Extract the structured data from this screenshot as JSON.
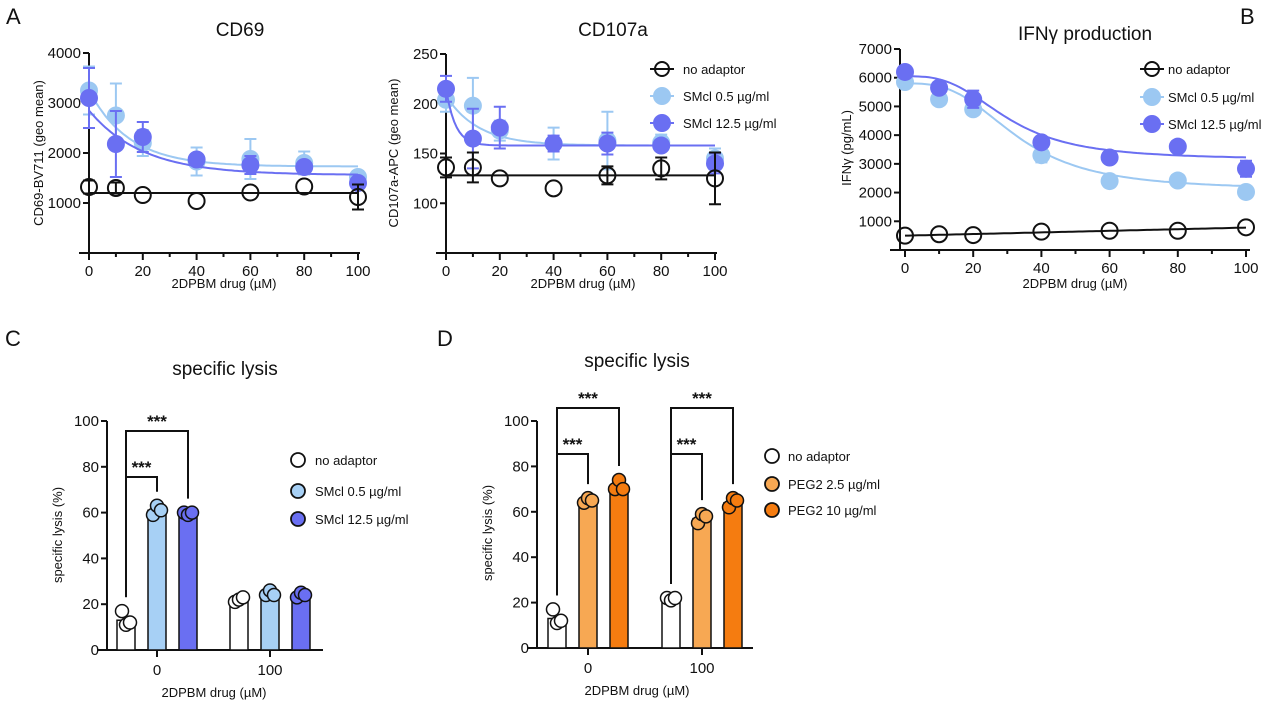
{
  "panel_letters": [
    "A",
    "B",
    "C",
    "D"
  ],
  "chart_data": [
    {
      "type": "scatter",
      "panel": "A",
      "title": "CD69",
      "xlabel": "2DPBM drug (µM)",
      "ylabel": "CD69-BV711 (geo mean)",
      "xlim": [
        0,
        100
      ],
      "ylim": [
        0,
        4000
      ],
      "xticks": [
        0,
        20,
        40,
        60,
        80,
        100
      ],
      "yticks": [
        1000,
        2000,
        3000,
        4000
      ],
      "x": [
        0,
        10,
        20,
        40,
        60,
        80,
        100
      ],
      "series": [
        {
          "name": "no adaptor",
          "color": "#111111",
          "open": true,
          "values": [
            1320,
            1300,
            1160,
            1040,
            1210,
            1330,
            1120
          ],
          "error": [
            130,
            110,
            0,
            0,
            0,
            0,
            250
          ],
          "fit": {
            "model": "constant",
            "value": 1200
          }
        },
        {
          "name": "SMcl 0.5 µg/ml",
          "color": "#9cc8f2",
          "values": [
            3250,
            2750,
            2200,
            1830,
            1880,
            1800,
            1520
          ],
          "error": [
            480,
            640,
            260,
            280,
            400,
            230,
            120
          ],
          "fit": {
            "model": "exponential",
            "top": 3250,
            "bottom": 1730,
            "k": 15
          }
        },
        {
          "name": "SMcl 12.5 µg/ml",
          "color": "#6a6ff2",
          "values": [
            3100,
            2180,
            2320,
            1870,
            1760,
            1720,
            1400
          ],
          "error": [
            600,
            660,
            300,
            0,
            180,
            0,
            80
          ],
          "fit": {
            "model": "exponential",
            "top": 2850,
            "bottom": 1560,
            "k": 20
          }
        }
      ],
      "legend": "none"
    },
    {
      "type": "scatter",
      "panel": "A",
      "title": "CD107a",
      "xlabel": "2DPBM drug (µM)",
      "ylabel": "CD107a-APC (geo mean)",
      "xlim": [
        0,
        100
      ],
      "ylim": [
        50,
        250
      ],
      "xticks": [
        0,
        20,
        40,
        60,
        80,
        100
      ],
      "yticks": [
        100,
        150,
        200,
        250
      ],
      "x": [
        0,
        10,
        20,
        40,
        60,
        80,
        100
      ],
      "series": [
        {
          "name": "no adaptor",
          "color": "#111111",
          "open": true,
          "values": [
            136,
            136,
            125,
            115,
            128,
            135,
            125
          ],
          "error": [
            10,
            15,
            0,
            0,
            9,
            11,
            26
          ],
          "fit": {
            "model": "constant",
            "value": 128
          }
        },
        {
          "name": "SMcl 0.5 µg/ml",
          "color": "#9cc8f2",
          "values": [
            204,
            198,
            173,
            160,
            163,
            161,
            145
          ],
          "error": [
            12,
            28,
            10,
            16,
            29,
            8,
            10
          ],
          "fit": {
            "model": "exponential",
            "top": 208,
            "bottom": 158,
            "k": 12
          }
        },
        {
          "name": "SMcl 12.5 µg/ml",
          "color": "#6a6ff2",
          "values": [
            215,
            165,
            176,
            160,
            160,
            158,
            140
          ],
          "error": [
            13,
            30,
            21,
            8,
            11,
            5,
            10
          ],
          "fit": {
            "model": "exponential",
            "top": 215,
            "bottom": 158,
            "k": 3.5
          }
        }
      ],
      "legend": "top-right"
    },
    {
      "type": "scatter",
      "panel": "B",
      "title": "IFNγ production",
      "xlabel": "2DPBM drug (µM)",
      "ylabel": "IFNγ (pg/mL)",
      "xlim": [
        0,
        100
      ],
      "ylim": [
        0,
        7000
      ],
      "xticks": [
        0,
        20,
        40,
        60,
        80,
        100
      ],
      "yticks": [
        1000,
        2000,
        3000,
        4000,
        5000,
        6000,
        7000
      ],
      "x": [
        0,
        10,
        20,
        40,
        60,
        80,
        100
      ],
      "series": [
        {
          "name": "no adaptor",
          "color": "#111111",
          "open": true,
          "values": [
            500,
            550,
            520,
            640,
            670,
            670,
            790
          ],
          "error": [
            0,
            0,
            0,
            0,
            0,
            0,
            0
          ],
          "fit": {
            "model": "linear",
            "intercept": 500,
            "slope": 2.8
          }
        },
        {
          "name": "SMcl 0.5 µg/ml",
          "color": "#9cc8f2",
          "values": [
            5850,
            5250,
            4900,
            3300,
            2400,
            2420,
            2020
          ],
          "error": [
            0,
            0,
            0,
            250,
            0,
            0,
            0
          ],
          "fit": {
            "model": "sigmoid",
            "top": 5800,
            "bottom": 2100,
            "ec50": 33,
            "hill": 3
          }
        },
        {
          "name": "SMcl 12.5 µg/ml",
          "color": "#6a6ff2",
          "values": [
            6200,
            5650,
            5250,
            3750,
            3220,
            3600,
            2830
          ],
          "error": [
            0,
            0,
            300,
            0,
            0,
            0,
            280
          ],
          "fit": {
            "model": "sigmoid",
            "top": 6050,
            "bottom": 3150,
            "ec50": 30,
            "hill": 3
          }
        }
      ],
      "legend": "top-right"
    },
    {
      "type": "bar",
      "panel": "C",
      "title": "specific lysis",
      "xlabel": "2DPBM drug (µM)",
      "ylabel": "specific lysis (%)",
      "ylim": [
        0,
        100
      ],
      "yticks": [
        0,
        20,
        40,
        60,
        80,
        100
      ],
      "categories": [
        "0",
        "100"
      ],
      "series": [
        {
          "name": "no adaptor",
          "color": "#ffffff",
          "values": [
            13,
            22
          ],
          "points": [
            [
              17,
              11,
              12
            ],
            [
              21,
              22,
              23
            ]
          ]
        },
        {
          "name": "SMcl 0.5 µg/ml",
          "color": "#a7d0f5",
          "values": [
            61,
            25
          ],
          "points": [
            [
              59,
              63,
              61
            ],
            [
              24,
              26,
              24
            ]
          ]
        },
        {
          "name": "SMcl 12.5 µg/ml",
          "color": "#6a6ff2",
          "values": [
            60,
            24
          ],
          "points": [
            [
              60,
              59,
              60
            ],
            [
              23,
              25,
              24
            ]
          ]
        }
      ],
      "significance": [
        {
          "category": "0",
          "from": "no adaptor",
          "to": "SMcl 0.5 µg/ml",
          "label": "***"
        },
        {
          "category": "0",
          "from": "no adaptor",
          "to": "SMcl 12.5 µg/ml",
          "label": "***"
        }
      ],
      "legend": "right"
    },
    {
      "type": "bar",
      "panel": "D",
      "title": "specific lysis",
      "xlabel": "2DPBM drug (µM)",
      "ylabel": "specific lysis (%)",
      "ylim": [
        0,
        100
      ],
      "yticks": [
        0,
        20,
        40,
        60,
        80,
        100
      ],
      "categories": [
        "0",
        "100"
      ],
      "series": [
        {
          "name": "no adaptor",
          "color": "#ffffff",
          "values": [
            13,
            22
          ],
          "points": [
            [
              17,
              11,
              12
            ],
            [
              22,
              21,
              22
            ]
          ]
        },
        {
          "name": "PEG2 2.5 µg/ml",
          "color": "#f7a853",
          "values": [
            65,
            57
          ],
          "points": [
            [
              64,
              66,
              65
            ],
            [
              55,
              59,
              58
            ]
          ]
        },
        {
          "name": "PEG2 10 µg/ml",
          "color": "#f57c10",
          "values": [
            71,
            64
          ],
          "points": [
            [
              70,
              74,
              70
            ],
            [
              62,
              66,
              65
            ]
          ]
        }
      ],
      "significance": [
        {
          "category": "0",
          "from": "no adaptor",
          "to": "PEG2 2.5 µg/ml",
          "label": "***"
        },
        {
          "category": "0",
          "from": "no adaptor",
          "to": "PEG2 10 µg/ml",
          "label": "***"
        },
        {
          "category": "100",
          "from": "no adaptor",
          "to": "PEG2 2.5 µg/ml",
          "label": "***"
        },
        {
          "category": "100",
          "from": "no adaptor",
          "to": "PEG2 10 µg/ml",
          "label": "***"
        }
      ],
      "legend": "right"
    }
  ]
}
